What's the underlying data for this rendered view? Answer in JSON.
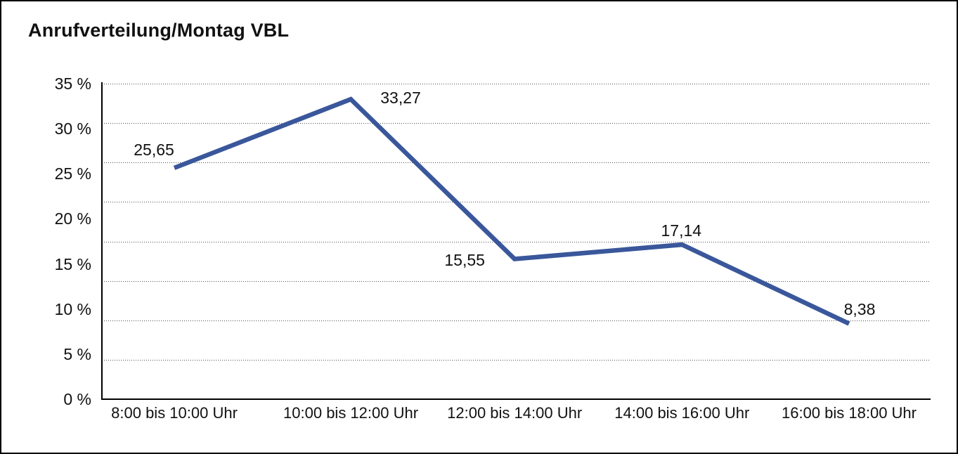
{
  "frame": {
    "background": "#ffffff",
    "border_color": "#000000"
  },
  "chart_data": {
    "type": "line",
    "title": "Anrufverteilung/Montag VBL",
    "categories": [
      "8:00 bis 10:00 Uhr",
      "10:00 bis 12:00 Uhr",
      "12:00 bis 14:00 Uhr",
      "14:00 bis 16:00 Uhr",
      "16:00 bis 18:00 Uhr"
    ],
    "values": [
      25.65,
      33.27,
      15.55,
      17.14,
      8.38
    ],
    "value_labels": [
      "25,65",
      "33,27",
      "15,55",
      "17,14",
      "8,38"
    ],
    "xlabel": "",
    "ylabel": "",
    "ylim": [
      0,
      35
    ],
    "y_ticks": [
      {
        "value": 35,
        "label": "35 %"
      },
      {
        "value": 30,
        "label": "30 %"
      },
      {
        "value": 25,
        "label": "25 %"
      },
      {
        "value": 20,
        "label": "20 %"
      },
      {
        "value": 15,
        "label": "15 %"
      },
      {
        "value": 10,
        "label": "10 %"
      },
      {
        "value": 5,
        "label": "5 %"
      },
      {
        "value": 0,
        "label": "0 %"
      }
    ],
    "grid": "horizontal-dotted, 8 equal divisions between 0 % axis and 35 % line",
    "legend": "none",
    "line_color": "#3A579B",
    "axis_color": "#000000",
    "gridline_color": "#4d4d4d",
    "text_color": "#111111"
  }
}
